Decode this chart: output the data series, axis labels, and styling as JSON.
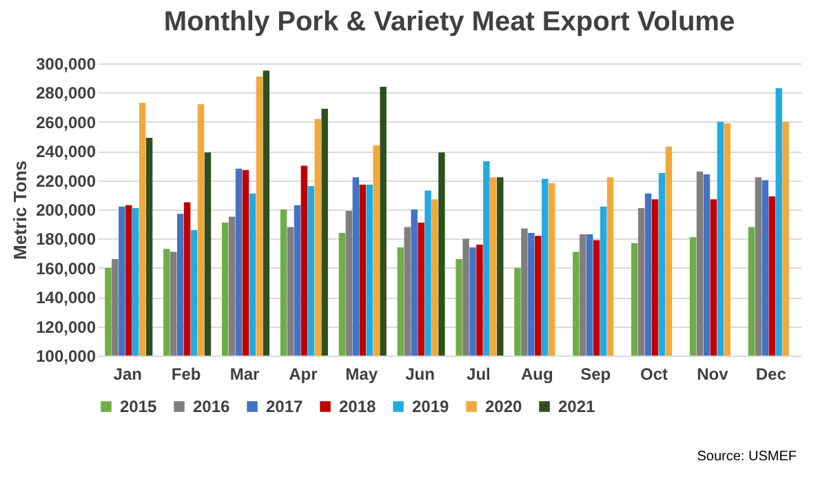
{
  "chart_data": {
    "type": "bar",
    "title": "Monthly Pork & Variety Meat Export Volume",
    "ylabel": "Metric Tons",
    "categories": [
      "Jan",
      "Feb",
      "Mar",
      "Apr",
      "May",
      "Jun",
      "Jul",
      "Aug",
      "Sep",
      "Oct",
      "Nov",
      "Dec"
    ],
    "series": [
      {
        "name": "2015",
        "color": "#70ad47",
        "values": [
          160000,
          173000,
          191000,
          200000,
          184000,
          174000,
          166000,
          160000,
          171000,
          177000,
          181000,
          188000
        ]
      },
      {
        "name": "2016",
        "color": "#7f7f7f",
        "values": [
          166000,
          171000,
          195000,
          188000,
          199000,
          188000,
          180000,
          187000,
          183000,
          201000,
          226000,
          222000
        ]
      },
      {
        "name": "2017",
        "color": "#4472c4",
        "values": [
          202000,
          197000,
          228000,
          203000,
          222000,
          200000,
          174000,
          184000,
          183000,
          211000,
          224000,
          220000
        ]
      },
      {
        "name": "2018",
        "color": "#c00000",
        "values": [
          203000,
          205000,
          227000,
          230000,
          217000,
          191000,
          176000,
          182000,
          179000,
          207000,
          207000,
          209000
        ]
      },
      {
        "name": "2019",
        "color": "#22aae2",
        "values": [
          201000,
          186000,
          211000,
          216000,
          217000,
          213000,
          233000,
          221000,
          202000,
          225000,
          260000,
          283000
        ]
      },
      {
        "name": "2020",
        "color": "#f2a93b",
        "values": [
          273000,
          272000,
          291000,
          262000,
          244000,
          207000,
          222000,
          218000,
          222000,
          243000,
          259000,
          260000
        ]
      },
      {
        "name": "2021",
        "color": "#2f4f1f",
        "values": [
          249000,
          239000,
          295000,
          269000,
          284000,
          239000,
          222000,
          null,
          null,
          null,
          null,
          null
        ]
      }
    ],
    "ylim": [
      100000,
      300000
    ],
    "yticks": [
      {
        "value": 100000,
        "label": "100,000"
      },
      {
        "value": 120000,
        "label": "120,000"
      },
      {
        "value": 140000,
        "label": "140,000"
      },
      {
        "value": 160000,
        "label": "160,000"
      },
      {
        "value": 180000,
        "label": "180,000"
      },
      {
        "value": 200000,
        "label": "200,000"
      },
      {
        "value": 220000,
        "label": "220,000"
      },
      {
        "value": 240000,
        "label": "240,000"
      },
      {
        "value": 260000,
        "label": "260,000"
      },
      {
        "value": 280000,
        "label": "280,000"
      },
      {
        "value": 300000,
        "label": "300,000"
      }
    ],
    "grid": "y",
    "legend": "bottom",
    "annotations": [
      "Source: USMEF"
    ]
  }
}
